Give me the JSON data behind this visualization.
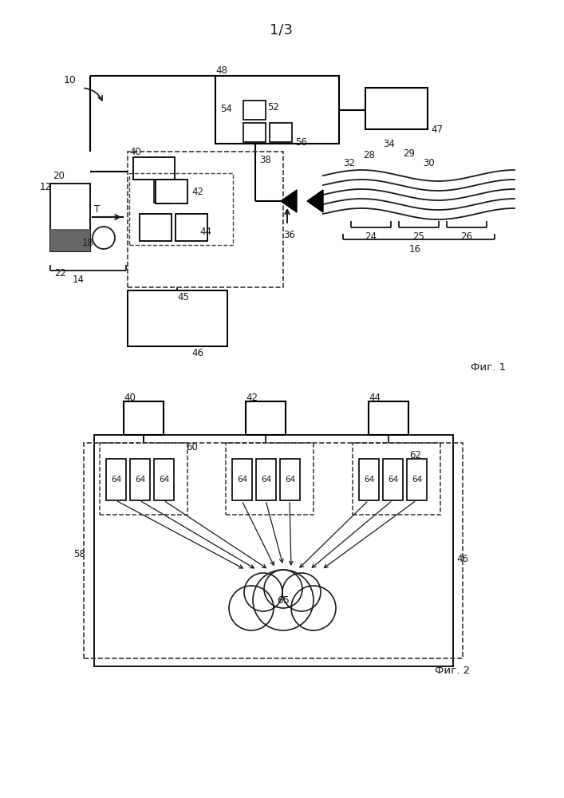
{
  "title": "1/3",
  "fig1_label": "Фиг. 1",
  "fig2_label": "Фиг. 2",
  "bg_color": "#ffffff",
  "lc": "#1a1a1a",
  "gray": "#555555"
}
